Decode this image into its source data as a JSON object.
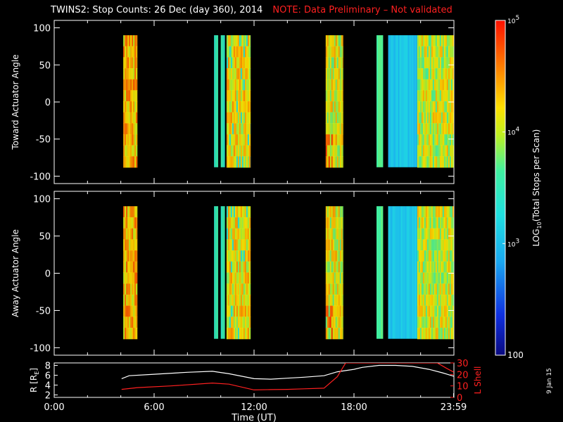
{
  "title": "TWINS2: Stop Counts: 26 Dec (day 360), 2014",
  "note": "NOTE: Data Preliminary – Not validated",
  "side_date": "9 Jan 15",
  "colors": {
    "note": "#ff2020",
    "orbit_r": "#ffffff",
    "orbit_lshell": "#ff2020",
    "axes": "#ffffff",
    "background": "#000000"
  },
  "chart_data": [
    {
      "type": "heatmap",
      "ylabel": "Toward Actuator Angle",
      "ylim": [
        -110,
        110
      ],
      "yticks": [
        100,
        50,
        0,
        -50,
        -100
      ],
      "xlim": [
        0,
        24
      ],
      "data_extent_deg": [
        -88,
        90
      ],
      "blocks": [
        {
          "t0": 4.15,
          "t1": 5.0,
          "level": 0.78,
          "pattern": "striped"
        },
        {
          "t0": 9.6,
          "t1": 9.85,
          "level": 0.5
        },
        {
          "t0": 9.85,
          "t1": 10.0,
          "level": 0.0
        },
        {
          "t0": 10.0,
          "t1": 10.25,
          "level": 0.5
        },
        {
          "t0": 10.25,
          "t1": 10.35,
          "level": 0.0
        },
        {
          "t0": 10.35,
          "t1": 11.8,
          "level": 0.72,
          "pattern": "speckle"
        },
        {
          "t0": 16.3,
          "t1": 17.35,
          "level": 0.7,
          "pattern": "hot-edge"
        },
        {
          "t0": 19.35,
          "t1": 19.75,
          "level": 0.55
        },
        {
          "t0": 19.75,
          "t1": 20.05,
          "level": 0.0
        },
        {
          "t0": 20.05,
          "t1": 21.8,
          "level": 0.35
        },
        {
          "t0": 21.8,
          "t1": 23.99,
          "level": 0.68,
          "pattern": "striped"
        }
      ]
    },
    {
      "type": "heatmap",
      "ylabel": "Away Actuator Angle",
      "ylim": [
        -110,
        110
      ],
      "yticks": [
        100,
        50,
        0,
        -50,
        -100
      ],
      "xlim": [
        0,
        24
      ],
      "data_extent_deg": [
        -88,
        90
      ],
      "blocks": [
        {
          "t0": 4.15,
          "t1": 5.0,
          "level": 0.78,
          "pattern": "striped"
        },
        {
          "t0": 9.6,
          "t1": 9.85,
          "level": 0.5
        },
        {
          "t0": 9.85,
          "t1": 10.0,
          "level": 0.0
        },
        {
          "t0": 10.0,
          "t1": 10.25,
          "level": 0.5
        },
        {
          "t0": 10.25,
          "t1": 10.35,
          "level": 0.0
        },
        {
          "t0": 10.35,
          "t1": 11.8,
          "level": 0.72,
          "pattern": "speckle"
        },
        {
          "t0": 16.3,
          "t1": 17.35,
          "level": 0.7,
          "pattern": "hot-edge"
        },
        {
          "t0": 19.35,
          "t1": 19.75,
          "level": 0.55
        },
        {
          "t0": 19.75,
          "t1": 20.05,
          "level": 0.0
        },
        {
          "t0": 20.05,
          "t1": 21.8,
          "level": 0.35
        },
        {
          "t0": 21.8,
          "t1": 23.99,
          "level": 0.68,
          "pattern": "striped"
        }
      ]
    },
    {
      "type": "line",
      "xlabel": "Time (UT)",
      "xticks": [
        "0:00",
        "6:00",
        "12:00",
        "18:00",
        "23:59"
      ],
      "xtick_values": [
        0,
        6,
        12,
        18,
        23.98
      ],
      "xlim": [
        0,
        24
      ],
      "ylabel_left": "R [R",
      "ylabel_left_sub": "E",
      "ylabel_left_close": "]",
      "ylim_left": [
        1.5,
        8.5
      ],
      "yticks_left": [
        8,
        6,
        4,
        2
      ],
      "ylabel_right": "L Shell",
      "ylim_right": [
        0,
        30
      ],
      "yticks_right": [
        30,
        20,
        10,
        0
      ],
      "series": [
        {
          "axis": "left",
          "x": [
            4.05,
            4.5,
            6,
            8,
            9.5,
            10.5,
            12,
            13,
            14,
            15,
            16.2,
            17,
            18,
            18.5,
            19.5,
            20.5,
            21.5,
            22.5,
            23.3,
            23.99
          ],
          "y": [
            5.3,
            5.9,
            6.2,
            6.6,
            6.8,
            6.3,
            5.3,
            5.2,
            5.4,
            5.6,
            5.9,
            6.7,
            7.2,
            7.6,
            8.0,
            8.0,
            7.8,
            7.2,
            6.5,
            5.8
          ]
        },
        {
          "axis": "right",
          "x": [
            4.05,
            5,
            7,
            9.5,
            10.5,
            12,
            13,
            14,
            15,
            16.2,
            17,
            17.5,
            23,
            23.6,
            23.99
          ],
          "y": [
            7,
            8.5,
            10,
            12.5,
            11.5,
            6.5,
            6.8,
            7,
            7.5,
            8,
            18,
            30,
            30,
            25,
            22
          ]
        }
      ]
    }
  ],
  "colorbar": {
    "label": "LOG",
    "label_sub": "10",
    "label_rest": "(Total Stops per Scan)",
    "ticks": [
      {
        "text": "10",
        "sup": "5",
        "value": 100000
      },
      {
        "text": "10",
        "sup": "4",
        "value": 10000
      },
      {
        "text": "10",
        "sup": "3",
        "value": 1000
      },
      {
        "text": "100",
        "sup": "",
        "value": 100
      }
    ]
  }
}
